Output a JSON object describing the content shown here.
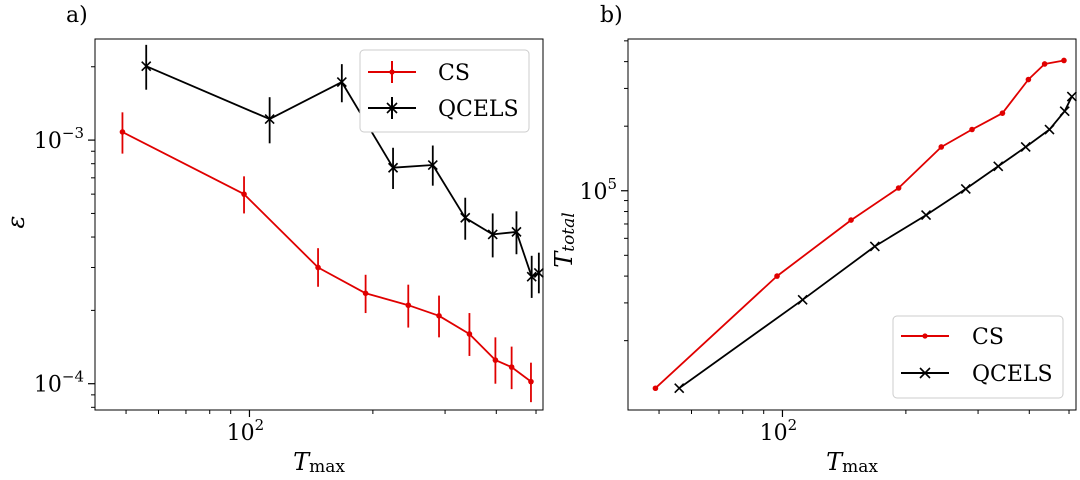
{
  "chart_data": [
    {
      "panel_label": "a)",
      "type": "line",
      "x_scale": "log",
      "y_scale": "log",
      "xlim": [
        42,
        520
      ],
      "ylim": [
        7.8e-05,
        0.0026
      ],
      "xlabel": {
        "base": "T",
        "sub": "max"
      },
      "ylabel": "ε",
      "x_ticks": [
        {
          "value": 100,
          "base": "10",
          "exp": "2"
        }
      ],
      "y_ticks": [
        {
          "value": 0.001,
          "base": "10",
          "exp": "−3"
        },
        {
          "value": 0.0001,
          "base": "10",
          "exp": "−4"
        }
      ],
      "legend": {
        "placement": "top-right",
        "entries": [
          "CS",
          "QCELS"
        ]
      },
      "series": [
        {
          "name": "CS",
          "color": "#e00000",
          "marker": "dot",
          "errorbars": true,
          "x": [
            49,
            97,
            147,
            192,
            244,
            290,
            344,
            398,
            436,
            486
          ],
          "y": [
            0.00108,
            0.0006,
            0.0003,
            0.000235,
            0.00021,
            0.00019,
            0.00016,
            0.000125,
            0.000117,
            0.000102
          ],
          "err_lo": [
            0.0002,
            0.0001,
            5e-05,
            4e-05,
            4e-05,
            3.5e-05,
            3e-05,
            2.5e-05,
            2.2e-05,
            1.8e-05
          ],
          "err_hi": [
            0.00022,
            0.00011,
            6e-05,
            4.5e-05,
            4.5e-05,
            4e-05,
            3.5e-05,
            3e-05,
            2.5e-05,
            2e-05
          ]
        },
        {
          "name": "QCELS",
          "color": "#000000",
          "marker": "x",
          "errorbars": true,
          "x": [
            56,
            112,
            168,
            224,
            280,
            336,
            392,
            448,
            488,
            508
          ],
          "y": [
            0.00201,
            0.00122,
            0.00173,
            0.00077,
            0.00079,
            0.00048,
            0.00041,
            0.00042,
            0.000275,
            0.000285
          ],
          "err_lo": [
            0.0004,
            0.00025,
            0.0003,
            0.00014,
            0.00014,
            9e-05,
            8e-05,
            8e-05,
            5e-05,
            5e-05
          ],
          "err_hi": [
            0.00045,
            0.00028,
            0.00032,
            0.00016,
            0.00016,
            0.0001,
            9e-05,
            9e-05,
            6e-05,
            6e-05
          ]
        }
      ]
    },
    {
      "panel_label": "b)",
      "type": "line",
      "x_scale": "log",
      "y_scale": "log",
      "xlim": [
        42,
        520
      ],
      "ylim": [
        9500,
        510000
      ],
      "xlabel": {
        "base": "T",
        "sub": "max"
      },
      "ylabel": {
        "base": "T",
        "sub": "total"
      },
      "x_ticks": [
        {
          "value": 100,
          "base": "10",
          "exp": "2"
        }
      ],
      "y_ticks": [
        {
          "value": 100000,
          "base": "10",
          "exp": "5"
        }
      ],
      "legend": {
        "placement": "bottom-right",
        "entries": [
          "CS",
          "QCELS"
        ]
      },
      "series": [
        {
          "name": "CS",
          "color": "#e00000",
          "marker": "dot",
          "errorbars": false,
          "x": [
            49,
            97,
            147,
            192,
            244,
            290,
            344,
            398,
            436,
            486
          ],
          "y": [
            12000,
            40000,
            73000,
            103000,
            160000,
            193000,
            230000,
            330000,
            390000,
            405000
          ]
        },
        {
          "name": "QCELS",
          "color": "#000000",
          "marker": "x",
          "errorbars": false,
          "x": [
            56,
            112,
            168,
            224,
            280,
            336,
            392,
            448,
            488,
            508
          ],
          "y": [
            12000,
            31000,
            55000,
            77000,
            102000,
            130000,
            160000,
            193000,
            235000,
            275000
          ]
        }
      ]
    }
  ]
}
